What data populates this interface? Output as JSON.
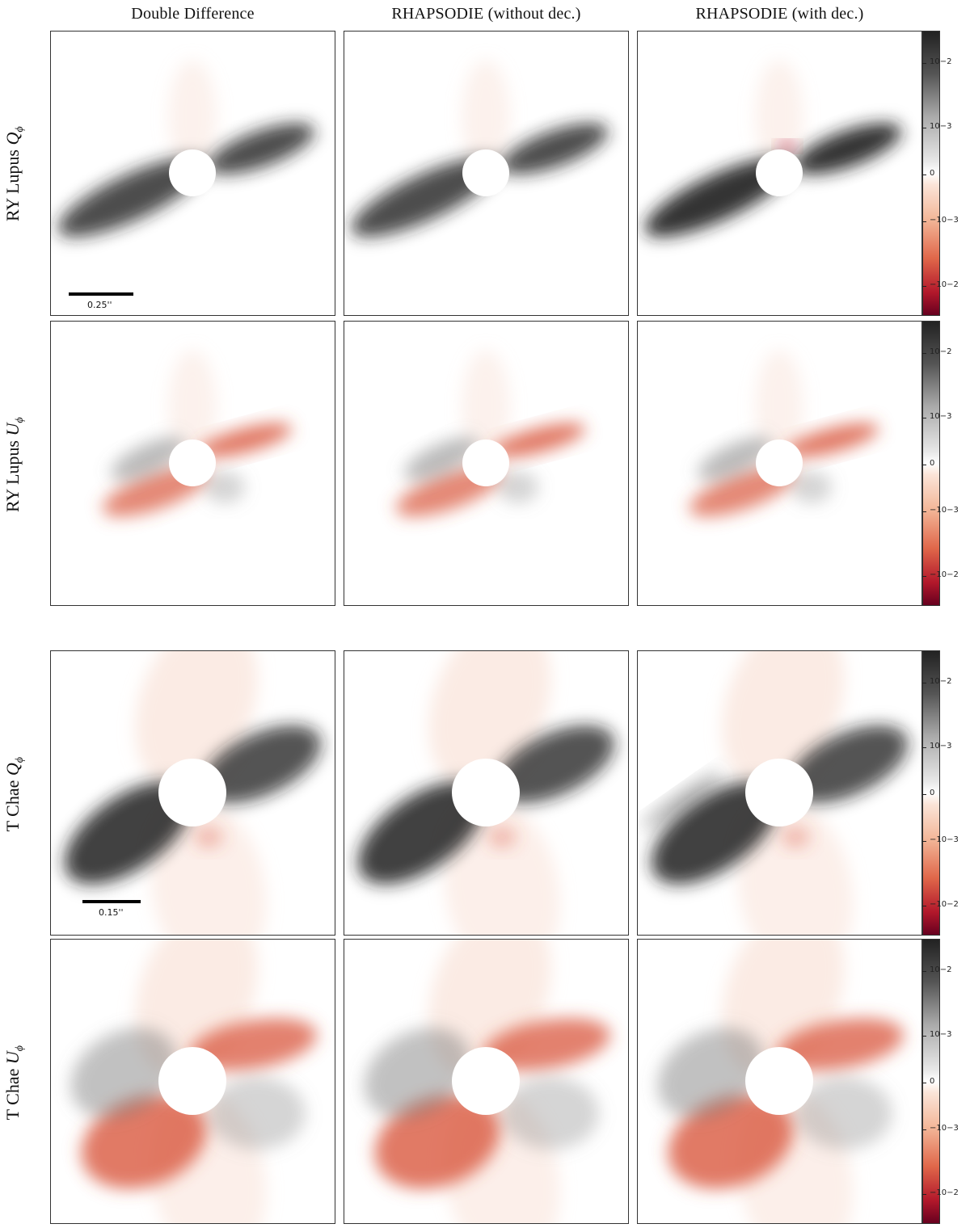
{
  "columns": [
    "Double Difference",
    "RHAPSODIE (without dec.)",
    "RHAPSODIE (with dec.)"
  ],
  "rows": [
    {
      "target": "RY Lupus",
      "symbol": "Q",
      "sub": "ϕ"
    },
    {
      "target": "RY Lupus",
      "symbol": "U",
      "sub": "ϕ"
    },
    {
      "target": "T Chae",
      "symbol": "Q",
      "sub": "ϕ"
    },
    {
      "target": "T Chae",
      "symbol": "U",
      "sub": "ϕ"
    }
  ],
  "scalebars": [
    "0.25''",
    "0.15''"
  ],
  "colorbar": {
    "ticks": [
      "10−2",
      "10−3",
      "0",
      "−10−3",
      "−10−2"
    ],
    "colors": {
      "positive_dark": "#222222",
      "zero": "#ffffff",
      "negative_dark": "#67001f",
      "negative_mid": "#e0674a"
    }
  }
}
